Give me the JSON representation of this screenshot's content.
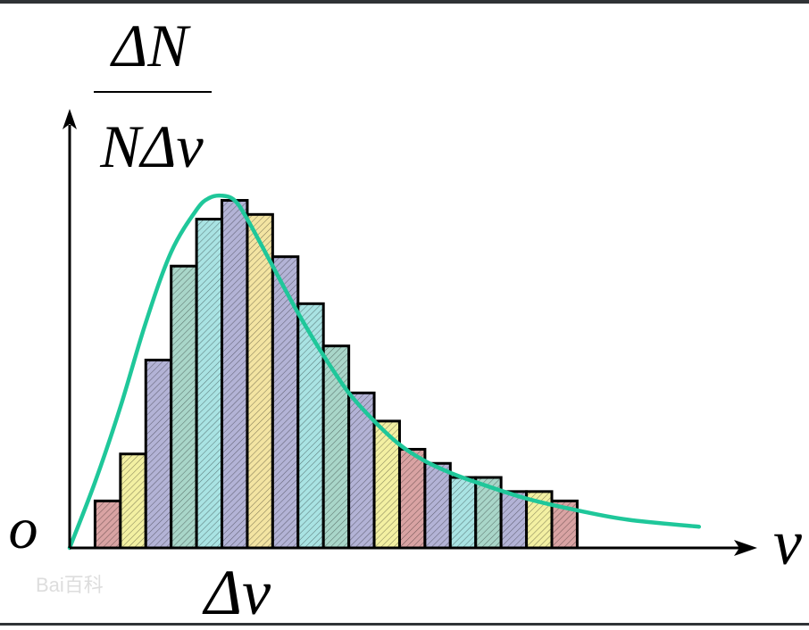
{
  "chart_data": {
    "type": "bar",
    "bar_values": [
      1,
      2,
      4,
      6,
      7,
      7.4,
      7.1,
      6.2,
      5.2,
      4.3,
      3.3,
      2.7,
      2.1,
      1.8,
      1.5,
      1.5,
      1.2,
      1.2,
      1
    ],
    "bar_colors": [
      "#d9a3a3",
      "#f3f0a2",
      "#b3b3d6",
      "#a9d6c9",
      "#a9e3e3",
      "#b3b3d6",
      "#f3e4a2",
      "#b3b3d6",
      "#a9e3e3",
      "#a9d6c9",
      "#b3b3d6",
      "#f3f0a2",
      "#d9a3a3",
      "#b3b3d6",
      "#a9e3e3",
      "#a9d6c9",
      "#b3b3d6",
      "#f3f0a2",
      "#d9a3a3"
    ],
    "curve": {
      "x": [
        0,
        1,
        2,
        3,
        4,
        5,
        5.5,
        6,
        6.5,
        7,
        8,
        9,
        10,
        11,
        12,
        13,
        14,
        15,
        16,
        18,
        20,
        22,
        24.8
      ],
      "y": [
        0,
        1.4,
        3.0,
        4.8,
        6.3,
        7.2,
        7.45,
        7.5,
        7.4,
        7.0,
        6.0,
        5.0,
        4.1,
        3.3,
        2.7,
        2.2,
        1.85,
        1.6,
        1.4,
        1.05,
        0.8,
        0.6,
        0.45
      ],
      "color": "#1fc79a"
    },
    "ylim": [
      0,
      7.6
    ],
    "xlim": [
      0,
      28.5
    ],
    "ylabel_top": "ΔN",
    "ylabel_bottom": "NΔv",
    "xlabel": "v",
    "origin_label": "o",
    "bin_label": "Δv",
    "grid": false
  },
  "watermark": "Bai百科"
}
